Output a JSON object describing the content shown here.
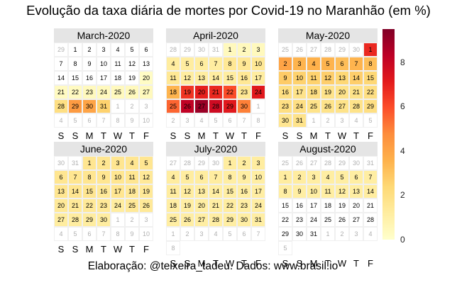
{
  "title": "Evolução da taxa diária de mortes por Covid-19 no Maranhão (em %)",
  "caption": "Elaboração: @teixeira_tadeu. Dados: www.brasil.io",
  "weekday_labels": [
    "S",
    "S",
    "M",
    "T",
    "W",
    "T",
    "F"
  ],
  "chart_data": {
    "type": "heatmap",
    "title": "Evolução da taxa diária de mortes por Covid-19 no Maranhão (em %)",
    "value_unit": "%",
    "color_scale": {
      "min": 0,
      "max": 9.5,
      "ticks": [
        0,
        2,
        4,
        6,
        8
      ],
      "stops": [
        "#ffffcc",
        "#ffeda0",
        "#fed976",
        "#feb24c",
        "#fd8d3c",
        "#fc4e2a",
        "#e31a1c",
        "#bd0026",
        "#800026"
      ]
    },
    "months": [
      {
        "name": "March-2020",
        "leading": [
          29
        ],
        "days_in_month": 31,
        "trailing": [
          1,
          2,
          3,
          4,
          5,
          6,
          7,
          8,
          9,
          10
        ],
        "values": [
          null,
          null,
          null,
          null,
          null,
          null,
          null,
          null,
          null,
          null,
          null,
          null,
          null,
          null,
          null,
          null,
          null,
          null,
          null,
          0.2,
          0.3,
          0.3,
          0.4,
          0.4,
          0.4,
          0.4,
          0.4,
          2.0,
          4.3,
          4.0,
          2.6
        ]
      },
      {
        "name": "April-2020",
        "leading": [
          28,
          29,
          30,
          31
        ],
        "days_in_month": 30,
        "trailing": [
          1,
          2,
          3,
          4,
          5,
          6,
          7,
          8
        ],
        "values": [
          0.4,
          0.4,
          0.4,
          1.2,
          1.2,
          1.2,
          1.2,
          1.5,
          1.5,
          1.5,
          1.5,
          1.2,
          1.2,
          1.2,
          1.2,
          1.5,
          1.2,
          3.5,
          6.5,
          7.0,
          6.8,
          6.0,
          1.5,
          7.2,
          5.5,
          8.2,
          9.0,
          7.8,
          7.2,
          5.0
        ]
      },
      {
        "name": "May-2020",
        "leading": [
          25,
          26,
          27,
          28,
          29,
          30
        ],
        "days_in_month": 31,
        "trailing": [
          1,
          2,
          3,
          4,
          5
        ],
        "values": [
          6.8,
          4.0,
          3.5,
          3.6,
          3.5,
          3.2,
          3.5,
          3.2,
          2.8,
          2.6,
          2.6,
          2.7,
          2.4,
          2.7,
          2.4,
          2.0,
          1.8,
          2.0,
          1.8,
          1.8,
          1.8,
          2.0,
          2.0,
          2.0,
          1.8,
          1.8,
          1.8,
          1.8,
          2.0,
          1.6,
          1.8
        ]
      },
      {
        "name": "June-2020",
        "leading": [
          30,
          31
        ],
        "days_in_month": 30,
        "trailing": [
          1,
          2,
          3,
          4,
          5,
          6,
          7,
          8,
          9,
          10
        ],
        "values": [
          1.6,
          1.6,
          1.6,
          1.6,
          1.6,
          1.6,
          1.6,
          1.6,
          1.6,
          1.6,
          1.6,
          1.4,
          1.6,
          1.6,
          1.6,
          1.4,
          1.6,
          1.4,
          1.4,
          1.4,
          1.4,
          1.4,
          1.4,
          1.2,
          1.4,
          1.4,
          1.2,
          1.2,
          1.2,
          1.2
        ]
      },
      {
        "name": "July-2020",
        "leading": [
          27,
          28,
          29,
          30
        ],
        "days_in_month": 31,
        "trailing": [
          1,
          2,
          3,
          4,
          5,
          6,
          7,
          8
        ],
        "values": [
          1.2,
          1.2,
          1.2,
          1.2,
          1.2,
          1.2,
          1.2,
          1.1,
          1.1,
          1.1,
          1.2,
          1.2,
          1.1,
          1.1,
          1.1,
          1.1,
          1.1,
          1.1,
          1.1,
          1.1,
          1.1,
          1.2,
          1.1,
          1.1,
          1.1,
          1.1,
          1.1,
          1.1,
          1.1,
          1.1,
          1.1
        ]
      },
      {
        "name": "August-2020",
        "leading": [
          25,
          26,
          27,
          28,
          29,
          30,
          31
        ],
        "days_in_month": 31,
        "trailing": [
          1,
          2,
          3,
          4,
          5
        ],
        "values": [
          1.2,
          1.2,
          1.1,
          1.1,
          1.1,
          1.1,
          1.1,
          1.1,
          1.1,
          1.1,
          1.1,
          1.1,
          1.1,
          1.2,
          null,
          null,
          null,
          null,
          null,
          null,
          null,
          null,
          null,
          null,
          null,
          null,
          null,
          null,
          null,
          null,
          null
        ]
      }
    ]
  }
}
